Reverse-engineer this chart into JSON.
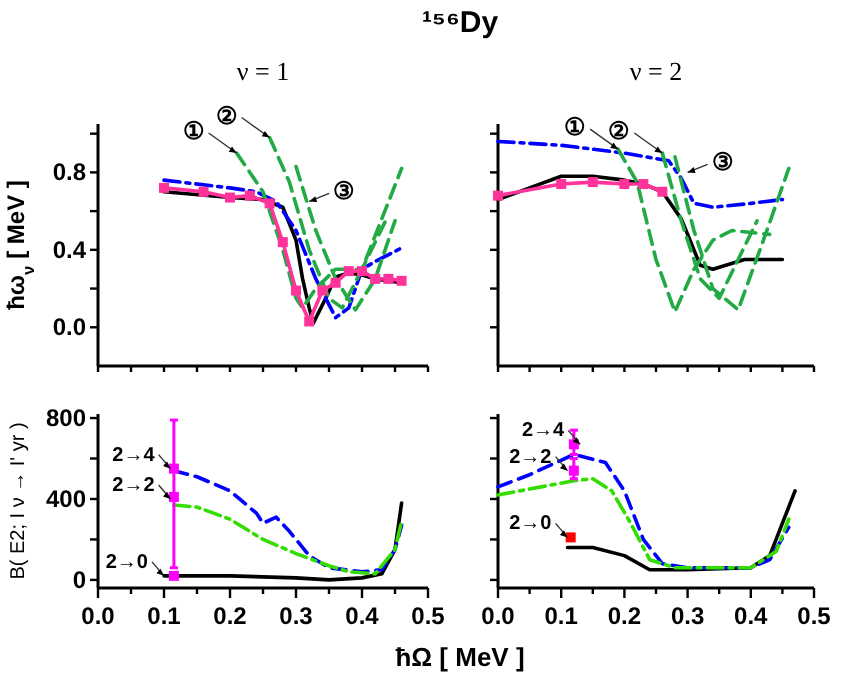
{
  "chart_data": [
    {
      "type": "line",
      "title": "¹⁵⁶Dy",
      "subtitle": "ν = 1",
      "ylabel": "ħω$_{ν}$ [ MeV ]",
      "xlim": [
        0,
        0.5
      ],
      "ylim": [
        -0.2,
        1.05
      ],
      "tick_labels": "y",
      "grid": false,
      "xticks": [
        {
          "value": 0,
          "label": null
        },
        {
          "value": 0.05,
          "label": null
        },
        {
          "value": 0.1,
          "label": null
        },
        {
          "value": 0.15,
          "label": null
        },
        {
          "value": 0.2,
          "label": null
        },
        {
          "value": 0.25,
          "label": null
        },
        {
          "value": 0.3,
          "label": null
        },
        {
          "value": 0.35,
          "label": null
        },
        {
          "value": 0.4,
          "label": null
        },
        {
          "value": 0.45,
          "label": null
        },
        {
          "value": 0.5,
          "label": null
        }
      ],
      "yticks": [
        {
          "value": 0,
          "label": "0.0"
        },
        {
          "value": 0.2,
          "label": null
        },
        {
          "value": 0.4,
          "label": "0.4"
        },
        {
          "value": 0.6,
          "label": null
        },
        {
          "value": 0.8,
          "label": "0.8"
        },
        {
          "value": 1.0,
          "label": null
        }
      ],
      "series": [
        {
          "color": "#ff3399",
          "marker": "square",
          "line_style": "solid",
          "x": [
            0.1,
            0.16,
            0.2,
            0.23,
            0.26,
            0.28,
            0.3,
            0.32,
            0.34,
            0.36,
            0.38,
            0.4,
            0.42,
            0.44,
            0.46
          ],
          "values": [
            0.72,
            0.7,
            0.67,
            0.68,
            0.64,
            0.44,
            0.19,
            0.03,
            0.19,
            0.23,
            0.29,
            0.29,
            0.25,
            0.25,
            0.24
          ]
        },
        {
          "color": "#000000",
          "marker": "none",
          "line_style": "solid",
          "x": [
            0.1,
            0.2,
            0.25,
            0.28,
            0.3,
            0.31,
            0.32,
            0.326,
            0.345,
            0.36,
            0.38,
            0.4,
            0.42,
            0.46
          ],
          "values": [
            0.7,
            0.67,
            0.66,
            0.62,
            0.45,
            0.25,
            0.1,
            0.02,
            0.15,
            0.26,
            0.28,
            0.27,
            0.25,
            0.23
          ]
        },
        {
          "color": "#0000ff",
          "marker": "none",
          "line_style": "dashdot",
          "x": [
            0.1,
            0.2,
            0.24,
            0.27,
            0.3,
            0.33,
            0.36,
            0.38,
            0.4,
            0.42,
            0.46
          ],
          "values": [
            0.76,
            0.72,
            0.7,
            0.65,
            0.5,
            0.25,
            0.05,
            0.1,
            0.3,
            0.34,
            0.41
          ]
        },
        {
          "color": "#22aa44",
          "marker": "none",
          "line_style": "dashed",
          "x": [
            0.21,
            0.25,
            0.28,
            0.3,
            0.31,
            0.33,
            0.36,
            0.4,
            0.44
          ],
          "values": [
            0.9,
            0.7,
            0.4,
            0.15,
            0.1,
            0.2,
            0.3,
            0.3,
            0.58
          ]
        },
        {
          "color": "#22aa44",
          "marker": "none",
          "line_style": "dashed",
          "x": [
            0.26,
            0.29,
            0.32,
            0.35,
            0.37,
            0.4,
            0.46
          ],
          "values": [
            0.98,
            0.75,
            0.4,
            0.15,
            0.1,
            0.3,
            0.82
          ]
        },
        {
          "color": "#22aa44",
          "marker": "none",
          "line_style": "dashed",
          "x": [
            0.3,
            0.33,
            0.36,
            0.39,
            0.42,
            0.45
          ],
          "values": [
            0.83,
            0.5,
            0.25,
            0.09,
            0.25,
            0.55
          ]
        }
      ],
      "annotations": [
        {
          "text": "①",
          "x": 0.21,
          "y": 0.9
        },
        {
          "text": "②",
          "x": 0.26,
          "y": 0.98
        },
        {
          "text": "③",
          "x": 0.32,
          "y": 0.65
        }
      ]
    },
    {
      "type": "line",
      "subtitle": "ν = 2",
      "xlim": [
        0,
        0.5
      ],
      "ylim": [
        -0.2,
        1.05
      ],
      "tick_labels": false,
      "grid": false,
      "xticks": [
        {
          "value": 0,
          "label": null
        },
        {
          "value": 0.05,
          "label": null
        },
        {
          "value": 0.1,
          "label": null
        },
        {
          "value": 0.15,
          "label": null
        },
        {
          "value": 0.2,
          "label": null
        },
        {
          "value": 0.25,
          "label": null
        },
        {
          "value": 0.3,
          "label": null
        },
        {
          "value": 0.35,
          "label": null
        },
        {
          "value": 0.4,
          "label": null
        },
        {
          "value": 0.45,
          "label": null
        },
        {
          "value": 0.5,
          "label": null
        }
      ],
      "yticks": [
        {
          "value": 0,
          "label": null
        },
        {
          "value": 0.2,
          "label": null
        },
        {
          "value": 0.4,
          "label": null
        },
        {
          "value": 0.6,
          "label": null
        },
        {
          "value": 0.8,
          "label": null
        },
        {
          "value": 1.0,
          "label": null
        }
      ],
      "series": [
        {
          "color": "#ff3399",
          "marker": "square",
          "line_style": "solid",
          "x": [
            0,
            0.1,
            0.15,
            0.2,
            0.23,
            0.26
          ],
          "values": [
            0.68,
            0.74,
            0.75,
            0.74,
            0.74,
            0.7
          ]
        },
        {
          "color": "#000000",
          "marker": "none",
          "line_style": "solid",
          "x": [
            0,
            0.05,
            0.1,
            0.15,
            0.2,
            0.23,
            0.26,
            0.29,
            0.32,
            0.34,
            0.39,
            0.45
          ],
          "values": [
            0.66,
            0.72,
            0.78,
            0.78,
            0.76,
            0.74,
            0.7,
            0.56,
            0.32,
            0.3,
            0.35,
            0.35
          ]
        },
        {
          "color": "#0000ff",
          "marker": "none",
          "line_style": "dashdot",
          "x": [
            0,
            0.1,
            0.2,
            0.27,
            0.29,
            0.31,
            0.34,
            0.4,
            0.45
          ],
          "values": [
            0.96,
            0.94,
            0.9,
            0.86,
            0.77,
            0.64,
            0.62,
            0.64,
            0.66
          ]
        },
        {
          "color": "#22aa44",
          "marker": "none",
          "line_style": "dashed",
          "x": [
            0.19,
            0.22,
            0.25,
            0.28,
            0.31,
            0.34,
            0.37,
            0.43
          ],
          "values": [
            0.92,
            0.75,
            0.35,
            0.08,
            0.3,
            0.45,
            0.5,
            0.48
          ]
        },
        {
          "color": "#22aa44",
          "marker": "none",
          "line_style": "dashed",
          "x": [
            0.26,
            0.29,
            0.32,
            0.35,
            0.38,
            0.41
          ],
          "values": [
            0.9,
            0.55,
            0.25,
            0.15,
            0.35,
            0.55
          ]
        },
        {
          "color": "#22aa44",
          "marker": "none",
          "line_style": "dashed",
          "x": [
            0.28,
            0.31,
            0.34,
            0.38,
            0.42,
            0.46
          ],
          "values": [
            0.88,
            0.5,
            0.2,
            0.09,
            0.45,
            0.82
          ]
        }
      ],
      "annotations": [
        {
          "text": "①",
          "x": 0.19,
          "y": 0.92
        },
        {
          "text": "②",
          "x": 0.26,
          "y": 0.9
        },
        {
          "text": "③",
          "x": 0.3,
          "y": 0.8
        }
      ]
    },
    {
      "type": "line",
      "ylabel": "B( E2; I ν → I' yr )",
      "xlabel": "ħΩ [ MeV ]",
      "xlim": [
        0,
        0.5
      ],
      "ylim": [
        -40,
        820
      ],
      "grid": false,
      "xticks": [
        {
          "value": 0,
          "label": "0.0"
        },
        {
          "value": 0.05,
          "label": null
        },
        {
          "value": 0.1,
          "label": "0.1"
        },
        {
          "value": 0.15,
          "label": null
        },
        {
          "value": 0.2,
          "label": "0.2"
        },
        {
          "value": 0.25,
          "label": null
        },
        {
          "value": 0.3,
          "label": "0.3"
        },
        {
          "value": 0.35,
          "label": null
        },
        {
          "value": 0.4,
          "label": "0.4"
        },
        {
          "value": 0.45,
          "label": null
        },
        {
          "value": 0.5,
          "label": "0.5"
        }
      ],
      "yticks": [
        0,
        {
          "value": 200,
          "label": null
        },
        400,
        {
          "value": 600,
          "label": null
        },
        800
      ],
      "series": [
        {
          "color": "#000000",
          "marker": "none",
          "line_style": "solid",
          "x": [
            0.1,
            0.2,
            0.3,
            0.35,
            0.4,
            0.43,
            0.45,
            0.46
          ],
          "values": [
            20,
            20,
            10,
            0,
            10,
            30,
            150,
            380
          ]
        },
        {
          "color": "#0000ff",
          "marker": "none",
          "line_style": "dashed",
          "x": [
            0.115,
            0.15,
            0.2,
            0.24,
            0.25,
            0.27,
            0.29,
            0.32,
            0.35,
            0.4,
            0.43,
            0.45,
            0.46
          ],
          "values": [
            540,
            510,
            440,
            330,
            280,
            310,
            240,
            120,
            60,
            40,
            50,
            150,
            270
          ]
        },
        {
          "color": "#33dd00",
          "marker": "none",
          "line_style": "dashdot",
          "x": [
            0.115,
            0.15,
            0.2,
            0.25,
            0.3,
            0.35,
            0.38,
            0.42,
            0.45,
            0.46
          ],
          "values": [
            370,
            360,
            300,
            200,
            130,
            70,
            40,
            30,
            150,
            290
          ]
        },
        {
          "type": "scatter",
          "marker": "square",
          "colors": [
            "#ff00ff",
            "#ff00ff",
            "#ff00ff"
          ],
          "x": [
            0.115,
            0.115,
            0.115
          ],
          "values": [
            20,
            410,
            550
          ],
          "errors": [
            null,
            null,
            [
              60,
              790
            ]
          ]
        }
      ],
      "annotations": [
        {
          "text": "2→4",
          "x": 0.11,
          "y": 550
        },
        {
          "text": "2→2",
          "x": 0.11,
          "y": 400
        },
        {
          "text": "2→0",
          "x": 0.1,
          "y": 20
        }
      ]
    },
    {
      "type": "line",
      "xlim": [
        0,
        0.5
      ],
      "ylim": [
        -40,
        820
      ],
      "tick_labels": "x",
      "grid": false,
      "xticks": [
        {
          "value": 0,
          "label": "0.0"
        },
        {
          "value": 0.05,
          "label": null
        },
        {
          "value": 0.1,
          "label": "0.1"
        },
        {
          "value": 0.15,
          "label": null
        },
        {
          "value": 0.2,
          "label": "0.2"
        },
        {
          "value": 0.25,
          "label": null
        },
        {
          "value": 0.3,
          "label": "0.3"
        },
        {
          "value": 0.35,
          "label": null
        },
        {
          "value": 0.4,
          "label": "0.4"
        },
        {
          "value": 0.45,
          "label": null
        },
        {
          "value": 0.5,
          "label": "0.5"
        }
      ],
      "yticks": [
        {
          "value": 0,
          "label": null
        },
        {
          "value": 200,
          "label": null
        },
        {
          "value": 400,
          "label": null
        },
        {
          "value": 600,
          "label": null
        },
        {
          "value": 800,
          "label": null
        }
      ],
      "series": [
        {
          "color": "#000000",
          "marker": "none",
          "line_style": "solid",
          "x": [
            0.11,
            0.15,
            0.2,
            0.24,
            0.3,
            0.4,
            0.43,
            0.47
          ],
          "values": [
            160,
            160,
            120,
            50,
            50,
            60,
            120,
            440
          ]
        },
        {
          "color": "#0000ff",
          "marker": "none",
          "line_style": "dashed",
          "x": [
            0,
            0.05,
            0.12,
            0.17,
            0.2,
            0.23,
            0.26,
            0.3,
            0.4,
            0.43,
            0.46
          ],
          "values": [
            460,
            520,
            620,
            580,
            440,
            200,
            80,
            60,
            60,
            100,
            260
          ]
        },
        {
          "color": "#33dd00",
          "marker": "none",
          "line_style": "dashdot",
          "x": [
            0,
            0.12,
            0.15,
            0.18,
            0.21,
            0.24,
            0.28,
            0.4,
            0.44,
            0.46
          ],
          "values": [
            420,
            490,
            500,
            440,
            280,
            100,
            60,
            60,
            140,
            300
          ]
        },
        {
          "type": "scatter",
          "marker": "square",
          "colors": [
            "#ff0000",
            "#ff00ff",
            "#ff00ff"
          ],
          "x": [
            0.115,
            0.12,
            0.12
          ],
          "values": [
            210,
            540,
            670
          ],
          "errors": [
            null,
            [
              500,
              600
            ],
            [
              620,
              740
            ]
          ]
        }
      ],
      "annotations": [
        {
          "text": "2→0",
          "x": 0.11,
          "y": 210
        },
        {
          "text": "2→2",
          "x": 0.11,
          "y": 540
        },
        {
          "text": "2→4",
          "x": 0.13,
          "y": 670
        }
      ]
    }
  ]
}
